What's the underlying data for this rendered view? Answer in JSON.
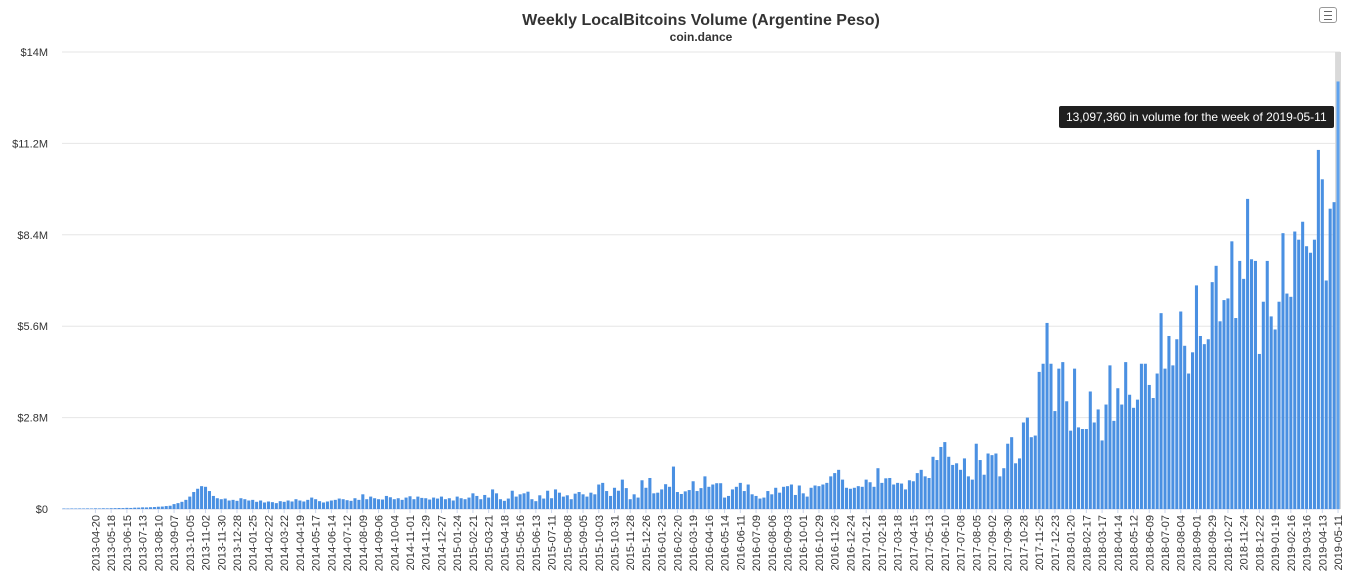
{
  "chart_data": {
    "type": "bar",
    "title": "Weekly LocalBitcoins Volume (Argentine Peso)",
    "subtitle": "coin.dance",
    "ylim": [
      0,
      14000000
    ],
    "y_ticks": [
      "$0",
      "$2.8M",
      "$5.6M",
      "$8.4M",
      "$11.2M",
      "$14M"
    ],
    "x_tick_labels": [
      "2013-04-20",
      "2013-05-18",
      "2013-06-15",
      "2013-07-13",
      "2013-08-10",
      "2013-09-07",
      "2013-10-05",
      "2013-11-02",
      "2013-11-30",
      "2013-12-28",
      "2014-01-25",
      "2014-02-22",
      "2014-03-22",
      "2014-04-19",
      "2014-05-17",
      "2014-06-14",
      "2014-07-12",
      "2014-08-09",
      "2014-09-06",
      "2014-10-04",
      "2014-11-01",
      "2014-11-29",
      "2014-12-27",
      "2015-01-24",
      "2015-02-21",
      "2015-03-21",
      "2015-04-18",
      "2015-05-16",
      "2015-06-13",
      "2015-07-11",
      "2015-08-08",
      "2015-09-05",
      "2015-10-03",
      "2015-10-31",
      "2015-11-28",
      "2015-12-26",
      "2016-01-23",
      "2016-02-20",
      "2016-03-19",
      "2016-04-16",
      "2016-05-14",
      "2016-06-11",
      "2016-07-09",
      "2016-08-06",
      "2016-09-03",
      "2016-10-01",
      "2016-10-29",
      "2016-11-26",
      "2016-12-24",
      "2017-01-21",
      "2017-02-18",
      "2017-03-18",
      "2017-04-15",
      "2017-05-13",
      "2017-06-10",
      "2017-07-08",
      "2017-08-05",
      "2017-09-02",
      "2017-09-30",
      "2017-10-28",
      "2017-11-25",
      "2017-12-23",
      "2018-01-20",
      "2018-02-17",
      "2018-03-17",
      "2018-04-14",
      "2018-05-12",
      "2018-06-09",
      "2018-07-07",
      "2018-08-04",
      "2018-09-01",
      "2018-09-29",
      "2018-10-27",
      "2018-11-24",
      "2018-12-22",
      "2019-01-19",
      "2019-02-16",
      "2019-03-16",
      "2019-04-13",
      "2019-05-11"
    ],
    "first_week": "2013-04-20",
    "last_week": "2019-05-11",
    "values": [
      15000,
      14000,
      16000,
      15000,
      17000,
      16000,
      18000,
      16000,
      20000,
      18000,
      22000,
      20000,
      24000,
      26000,
      30000,
      28000,
      35000,
      32000,
      40000,
      42000,
      50000,
      48000,
      55000,
      60000,
      70000,
      75000,
      90000,
      100000,
      150000,
      180000,
      220000,
      280000,
      380000,
      520000,
      620000,
      700000,
      680000,
      550000,
      400000,
      330000,
      300000,
      320000,
      260000,
      280000,
      250000,
      330000,
      300000,
      260000,
      280000,
      220000,
      260000,
      200000,
      230000,
      210000,
      180000,
      240000,
      220000,
      260000,
      230000,
      300000,
      260000,
      230000,
      280000,
      350000,
      300000,
      240000,
      200000,
      230000,
      260000,
      280000,
      320000,
      300000,
      270000,
      250000,
      330000,
      280000,
      450000,
      300000,
      380000,
      330000,
      300000,
      290000,
      400000,
      360000,
      300000,
      330000,
      280000,
      350000,
      390000,
      300000,
      380000,
      340000,
      330000,
      290000,
      350000,
      320000,
      380000,
      300000,
      330000,
      260000,
      380000,
      330000,
      300000,
      350000,
      480000,
      400000,
      300000,
      430000,
      350000,
      600000,
      480000,
      300000,
      250000,
      320000,
      560000,
      380000,
      450000,
      480000,
      530000,
      300000,
      240000,
      420000,
      320000,
      560000,
      330000,
      600000,
      500000,
      380000,
      420000,
      300000,
      470000,
      520000,
      450000,
      380000,
      500000,
      450000,
      750000,
      800000,
      550000,
      400000,
      650000,
      560000,
      900000,
      640000,
      300000,
      450000,
      350000,
      880000,
      650000,
      950000,
      480000,
      500000,
      600000,
      760000,
      680000,
      1300000,
      520000,
      460000,
      540000,
      580000,
      850000,
      550000,
      640000,
      1000000,
      680000,
      750000,
      790000,
      790000,
      350000,
      400000,
      600000,
      680000,
      800000,
      550000,
      750000,
      450000,
      400000,
      320000,
      350000,
      550000,
      450000,
      650000,
      500000,
      680000,
      700000,
      750000,
      430000,
      720000,
      480000,
      380000,
      650000,
      720000,
      700000,
      750000,
      800000,
      1000000,
      1100000,
      1200000,
      900000,
      650000,
      620000,
      650000,
      700000,
      680000,
      900000,
      820000,
      680000,
      1250000,
      800000,
      940000,
      950000,
      750000,
      800000,
      780000,
      600000,
      880000,
      850000,
      1100000,
      1200000,
      1000000,
      950000,
      1600000,
      1500000,
      1900000,
      2050000,
      1600000,
      1350000,
      1400000,
      1200000,
      1550000,
      1000000,
      900000,
      2000000,
      1500000,
      1050000,
      1700000,
      1650000,
      1700000,
      1000000,
      1250000,
      2000000,
      2200000,
      1400000,
      1550000,
      2650000,
      2800000,
      2200000,
      2250000,
      4200000,
      4450000,
      5700000,
      4450000,
      3000000,
      4300000,
      4500000,
      3300000,
      2400000,
      4300000,
      2500000,
      2450000,
      2450000,
      3600000,
      2650000,
      3050000,
      2100000,
      3200000,
      4400000,
      2700000,
      3700000,
      3200000,
      4500000,
      3500000,
      3100000,
      3350000,
      4450000,
      4450000,
      3800000,
      3400000,
      4150000,
      6000000,
      4300000,
      5300000,
      4400000,
      5200000,
      6050000,
      5000000,
      4150000,
      4800000,
      6850000,
      5300000,
      5050000,
      5200000,
      6950000,
      7450000,
      5750000,
      6400000,
      6450000,
      8200000,
      5850000,
      7600000,
      7050000,
      9500000,
      7650000,
      7600000,
      4750000,
      6350000,
      7600000,
      5900000,
      5500000,
      6350000,
      8450000,
      6600000,
      6500000,
      8500000,
      8250000,
      8800000,
      8050000,
      7850000,
      8250000,
      11000000,
      10100000,
      7000000,
      9200000,
      9400000,
      13097360
    ],
    "tooltip_text": "13,097,360 in volume for the week of 2019-05-11",
    "highlighted_week": "2019-05-11",
    "bar_color": "#4a90e2",
    "highlight_color": "#5ea2ee",
    "hover_band_color": "#d9d9d9",
    "legend": "none",
    "grid": true
  }
}
